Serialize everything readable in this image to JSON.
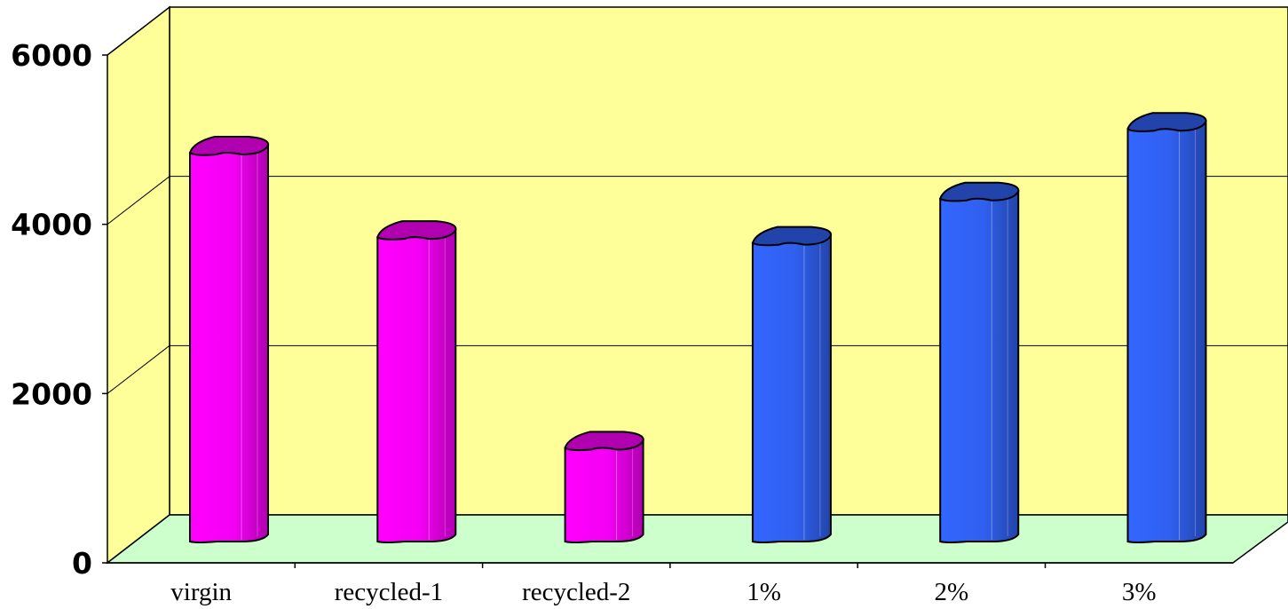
{
  "chart_data": {
    "type": "bar",
    "title": "",
    "xlabel": "",
    "ylabel": "",
    "categories": [
      "virgin",
      "recycled-1",
      "recycled-2",
      "1%",
      "2%",
      "3%"
    ],
    "values": [
      4830,
      3800,
      1230,
      3730,
      4270,
      5120
    ],
    "ylim": [
      0,
      6000
    ],
    "yticks": [
      "0",
      "2000",
      "4000",
      "6000"
    ],
    "grid": true,
    "legend": "none",
    "series_colors": [
      "#ff00ff",
      "#ff00ff",
      "#ff00ff",
      "#3366ff",
      "#3366ff",
      "#3366ff"
    ],
    "colors": {
      "wall": "#ffff99",
      "floor": "#ccffcc",
      "magenta": "#ff00ff",
      "magenta_dark": "#b000b0",
      "blue": "#3366ff",
      "blue_dark": "#2244aa"
    }
  }
}
